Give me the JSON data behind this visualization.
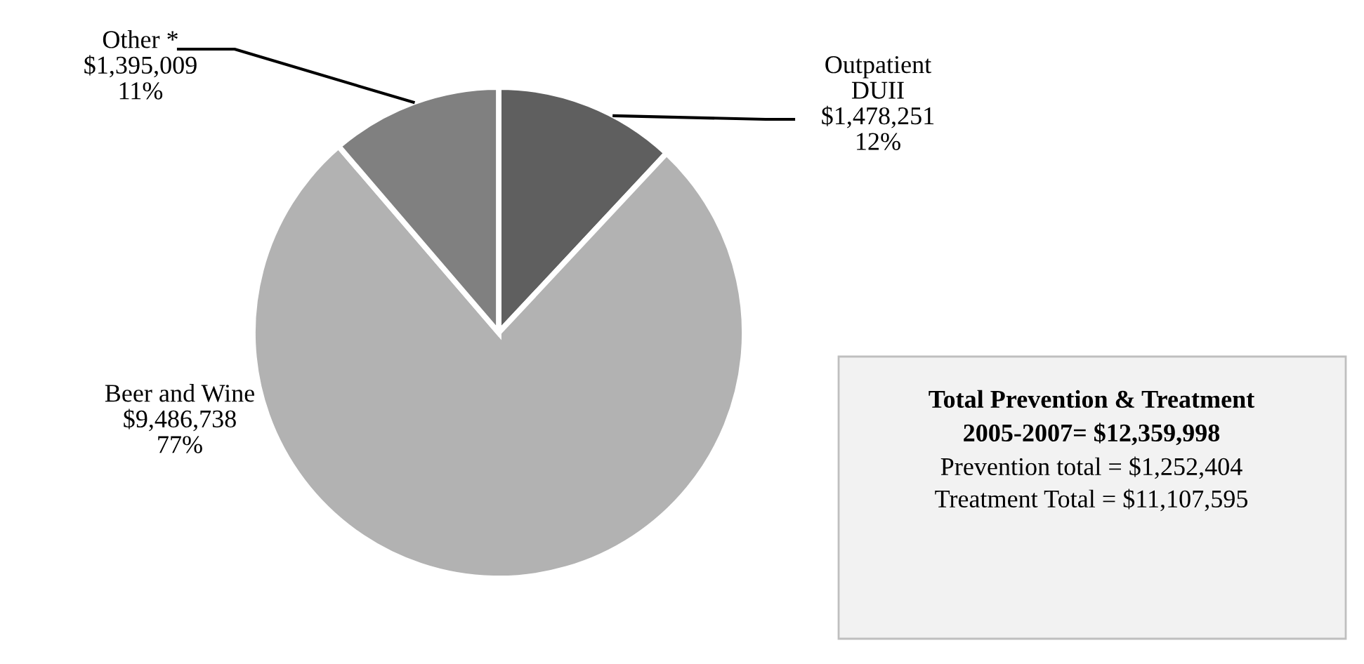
{
  "chart_data": {
    "type": "pie",
    "categories": [
      "Outpatient\nDUII",
      "Beer and Wine",
      "Other *"
    ],
    "values": [
      1478251,
      9486738,
      1395009
    ],
    "colors": [
      "#5f5f5f",
      "#b2b2b2",
      "#808080"
    ],
    "value_labels": [
      "$1,478,251\n12%",
      "$9,486,738\n77%",
      "$1,395,009\n11%"
    ],
    "annotations": [
      "Total Prevention & Treatment",
      "2005-2007= $12,359,998",
      "Prevention total = $1,252,404",
      "Treatment Total = $11,107,595"
    ],
    "legend": false
  }
}
